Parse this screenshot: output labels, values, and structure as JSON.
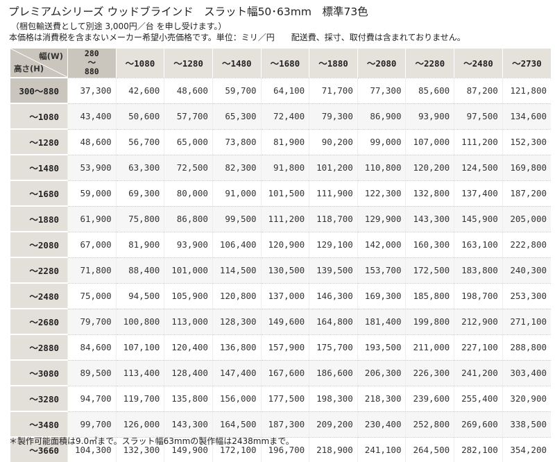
{
  "header": {
    "title": "プレミアムシリーズ ウッドブラインド　スラット幅50･63mm　標準73色",
    "shipping_note": "（梱包輸送費として別途 3,000円／台 を申し受けます。）",
    "tax_note": "本価格は消費税を含まないメーカー希望小売価格です。単位：ミリ／円　　配送費、採寸、取付費は含まれておりません。"
  },
  "table": {
    "width_label": "幅(W)",
    "height_label": "高さ(H)",
    "first_col_line1": "280",
    "first_col_line2": "～",
    "first_col_line3": "880",
    "columns": [
      "～1080",
      "～1280",
      "～1480",
      "～1680",
      "～1880",
      "～2080",
      "～2280",
      "～2480",
      "～2730"
    ],
    "rows": [
      {
        "label": "300～880",
        "values": [
          "37,300",
          "42,600",
          "48,600",
          "59,700",
          "64,100",
          "71,700",
          "77,300",
          "85,600",
          "87,200",
          "121,800"
        ]
      },
      {
        "label": "～1080",
        "values": [
          "43,400",
          "50,600",
          "57,700",
          "65,300",
          "72,400",
          "79,300",
          "86,900",
          "93,900",
          "97,500",
          "134,600"
        ]
      },
      {
        "label": "～1280",
        "values": [
          "48,600",
          "56,700",
          "65,000",
          "73,800",
          "81,900",
          "90,200",
          "99,000",
          "107,000",
          "111,200",
          "152,300"
        ]
      },
      {
        "label": "～1480",
        "values": [
          "53,900",
          "63,300",
          "72,500",
          "82,300",
          "91,800",
          "101,200",
          "110,800",
          "120,200",
          "124,500",
          "169,800"
        ]
      },
      {
        "label": "～1680",
        "values": [
          "59,000",
          "69,300",
          "80,000",
          "91,000",
          "101,500",
          "111,900",
          "122,300",
          "132,800",
          "137,400",
          "187,200"
        ]
      },
      {
        "label": "～1880",
        "values": [
          "61,900",
          "75,800",
          "86,800",
          "99,500",
          "111,200",
          "118,700",
          "129,900",
          "143,300",
          "145,900",
          "205,000"
        ]
      },
      {
        "label": "～2080",
        "values": [
          "67,000",
          "81,900",
          "93,900",
          "106,400",
          "120,900",
          "129,100",
          "142,000",
          "160,300",
          "163,100",
          "222,800"
        ]
      },
      {
        "label": "～2280",
        "values": [
          "71,800",
          "88,400",
          "101,000",
          "114,500",
          "130,500",
          "139,500",
          "153,700",
          "172,500",
          "183,800",
          "240,300"
        ]
      },
      {
        "label": "～2480",
        "values": [
          "75,000",
          "94,500",
          "105,900",
          "120,800",
          "137,000",
          "146,300",
          "169,300",
          "185,800",
          "198,700",
          "253,300"
        ]
      },
      {
        "label": "～2680",
        "values": [
          "79,700",
          "100,800",
          "113,000",
          "128,300",
          "149,600",
          "164,800",
          "181,400",
          "199,800",
          "212,900",
          "271,100"
        ]
      },
      {
        "label": "～2880",
        "values": [
          "84,600",
          "107,100",
          "120,400",
          "136,800",
          "157,900",
          "175,700",
          "193,500",
          "211,000",
          "227,100",
          "288,800"
        ]
      },
      {
        "label": "～3080",
        "values": [
          "89,500",
          "113,400",
          "128,400",
          "147,400",
          "167,600",
          "186,600",
          "206,300",
          "226,300",
          "241,200",
          "303,400"
        ]
      },
      {
        "label": "～3280",
        "values": [
          "94,700",
          "119,700",
          "135,800",
          "156,000",
          "177,500",
          "198,300",
          "218,300",
          "239,600",
          "255,400",
          "320,900"
        ]
      },
      {
        "label": "～3480",
        "values": [
          "99,700",
          "126,000",
          "143,300",
          "164,500",
          "187,300",
          "209,200",
          "230,400",
          "252,800",
          "269,600",
          "338,500"
        ]
      },
      {
        "label": "～3660",
        "values": [
          "104,300",
          "132,300",
          "149,900",
          "172,100",
          "196,700",
          "218,900",
          "241,100",
          "264,500",
          "282,100",
          "354,200"
        ]
      }
    ]
  },
  "footer": {
    "note": "＊製作可能面積は9.0㎡まで。スラット幅63mmの製作幅は2438mmまで。"
  }
}
